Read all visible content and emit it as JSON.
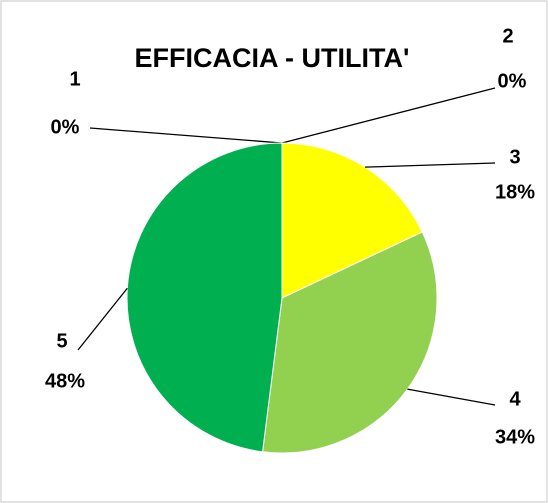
{
  "chart_data": {
    "type": "pie",
    "title": "EFFICACIA - UTILITA'",
    "categories": [
      "1",
      "2",
      "3",
      "4",
      "5"
    ],
    "values": [
      0,
      0,
      18,
      34,
      48
    ],
    "value_labels": [
      "0%",
      "0%",
      "18%",
      "34%",
      "48%"
    ],
    "colors": [
      "#ff0000",
      "#ffc000",
      "#ffff00",
      "#92d050",
      "#00b050"
    ]
  }
}
